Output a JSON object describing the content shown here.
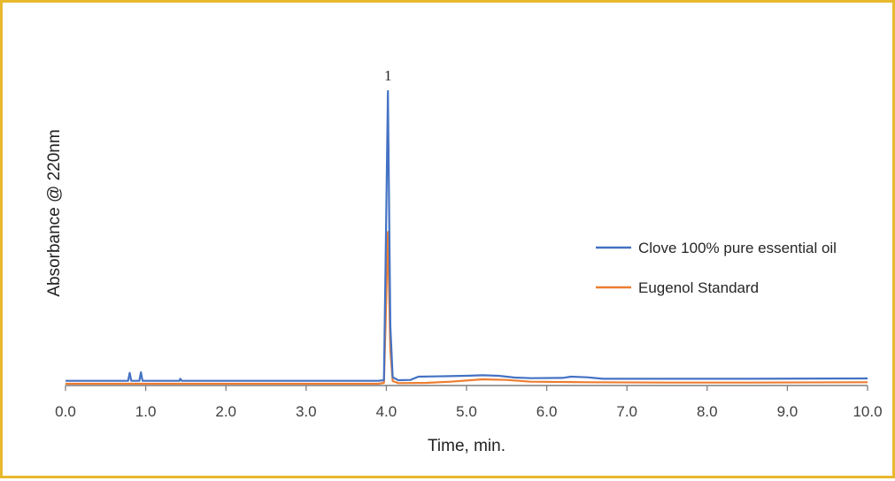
{
  "chart_data": {
    "type": "line",
    "title": "",
    "xlabel": "Time, min.",
    "ylabel": "Absorbance @ 220nm",
    "xlim": [
      0,
      10
    ],
    "ylim": [
      0,
      100
    ],
    "x_ticks": [
      "0.0",
      "1.0",
      "2.0",
      "3.0",
      "4.0",
      "5.0",
      "6.0",
      "7.0",
      "8.0",
      "9.0",
      "10.0"
    ],
    "y_ticks_shown": false,
    "grid": false,
    "legend_position": "right",
    "annotations": [
      {
        "text": "1",
        "x": 4.02
      }
    ],
    "series": [
      {
        "name": "Clove 100% pure essential oil",
        "color": "#4472c4",
        "points": [
          [
            0.0,
            1.3
          ],
          [
            0.78,
            1.3
          ],
          [
            0.8,
            4.0
          ],
          [
            0.82,
            1.3
          ],
          [
            0.92,
            1.3
          ],
          [
            0.94,
            4.2
          ],
          [
            0.96,
            1.3
          ],
          [
            1.42,
            1.3
          ],
          [
            1.43,
            2.0
          ],
          [
            1.45,
            1.3
          ],
          [
            3.9,
            1.3
          ],
          [
            3.97,
            1.5
          ],
          [
            3.99,
            40.0
          ],
          [
            4.02,
            100.0
          ],
          [
            4.05,
            20.0
          ],
          [
            4.08,
            2.5
          ],
          [
            4.15,
            1.5
          ],
          [
            4.3,
            1.6
          ],
          [
            4.4,
            2.7
          ],
          [
            4.6,
            2.8
          ],
          [
            5.0,
            3.0
          ],
          [
            5.2,
            3.2
          ],
          [
            5.4,
            3.0
          ],
          [
            5.6,
            2.4
          ],
          [
            5.8,
            2.2
          ],
          [
            6.2,
            2.3
          ],
          [
            6.3,
            2.7
          ],
          [
            6.5,
            2.5
          ],
          [
            6.7,
            2.0
          ],
          [
            7.5,
            2.0
          ],
          [
            8.5,
            2.0
          ],
          [
            10.0,
            2.1
          ]
        ]
      },
      {
        "name": "Eugenol Standard",
        "color": "#ed7d31",
        "points": [
          [
            0.0,
            0.3
          ],
          [
            3.9,
            0.3
          ],
          [
            3.97,
            0.6
          ],
          [
            3.99,
            20.0
          ],
          [
            4.02,
            52.0
          ],
          [
            4.05,
            12.0
          ],
          [
            4.08,
            1.2
          ],
          [
            4.15,
            0.5
          ],
          [
            4.5,
            0.6
          ],
          [
            4.8,
            1.0
          ],
          [
            5.2,
            1.8
          ],
          [
            5.5,
            1.6
          ],
          [
            5.8,
            1.0
          ],
          [
            6.5,
            0.8
          ],
          [
            7.5,
            0.7
          ],
          [
            8.5,
            0.7
          ],
          [
            10.0,
            0.8
          ]
        ]
      }
    ]
  }
}
